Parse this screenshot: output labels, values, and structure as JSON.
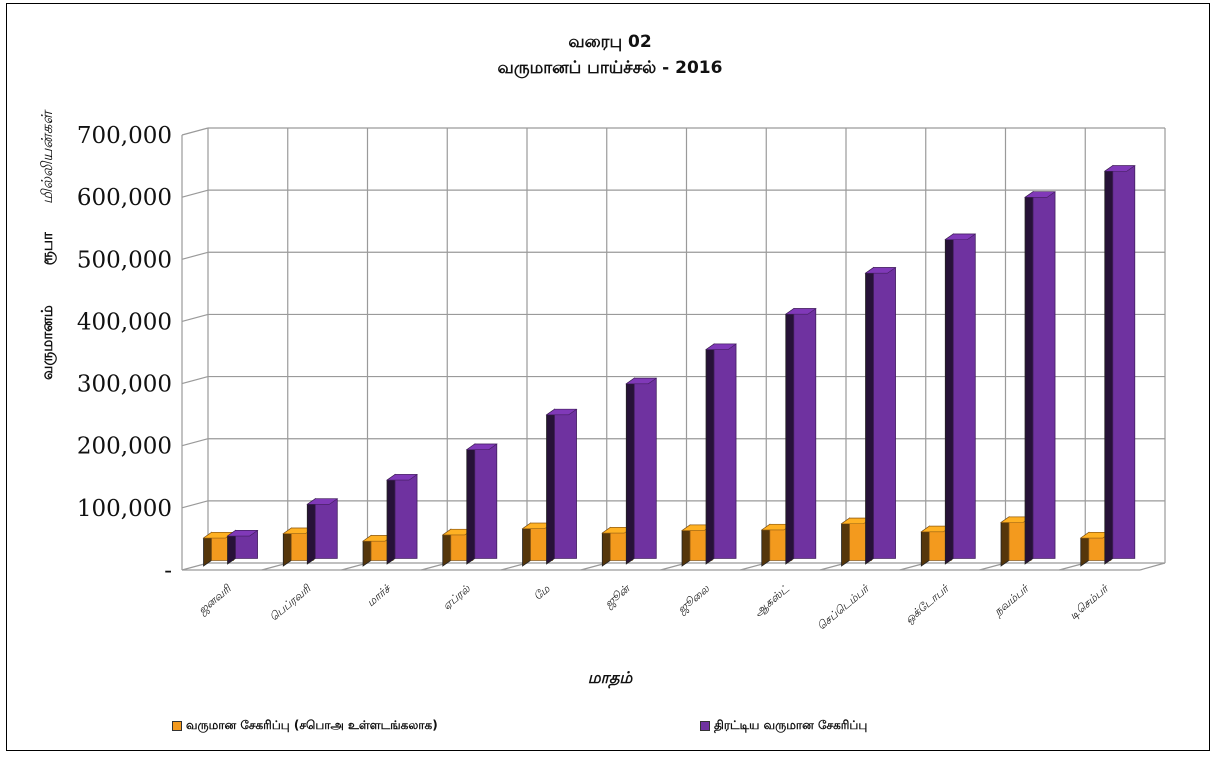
{
  "chart_data": {
    "type": "bar",
    "title": "வரைபு 02",
    "subtitle": "வருமானப் பாய்ச்சல் - 2016",
    "ylabel_parts": [
      "வருமானம்",
      "ரூபா",
      "மில்லியன்கள்"
    ],
    "xlabel": "மாதம்",
    "ylim": [
      0,
      700000
    ],
    "yticks": [
      "-",
      "100,000",
      "200,000",
      "300,000",
      "400,000",
      "500,000",
      "600,000",
      "700,000"
    ],
    "categories": [
      "ஜனவரி",
      "பெப்ரவரி",
      "மார்ச்",
      "ஏப்ரல்",
      "மே",
      "ஜூன்",
      "ஜூலை",
      "ஆகஸ்ட்",
      "செப்டெம்பர்",
      "ஒக்டோபர்",
      "நவம்பர்",
      "டிசெம்பர்"
    ],
    "series": [
      {
        "name": "வருமான சேகரிப்பு (சபொஅ உள்ளடங்கலாக)",
        "color": "#f39a1e",
        "values": [
          45000,
          52000,
          40000,
          50000,
          60000,
          53000,
          57000,
          58000,
          68000,
          55000,
          70000,
          45000
        ]
      },
      {
        "name": "திரட்டிய வருமான சேகரிப்பு",
        "color": "#6f32a0",
        "values": [
          45000,
          96000,
          135000,
          184000,
          240000,
          290000,
          345000,
          402000,
          468000,
          522000,
          590000,
          632000
        ]
      }
    ],
    "grid": true,
    "legend": "bottom"
  }
}
